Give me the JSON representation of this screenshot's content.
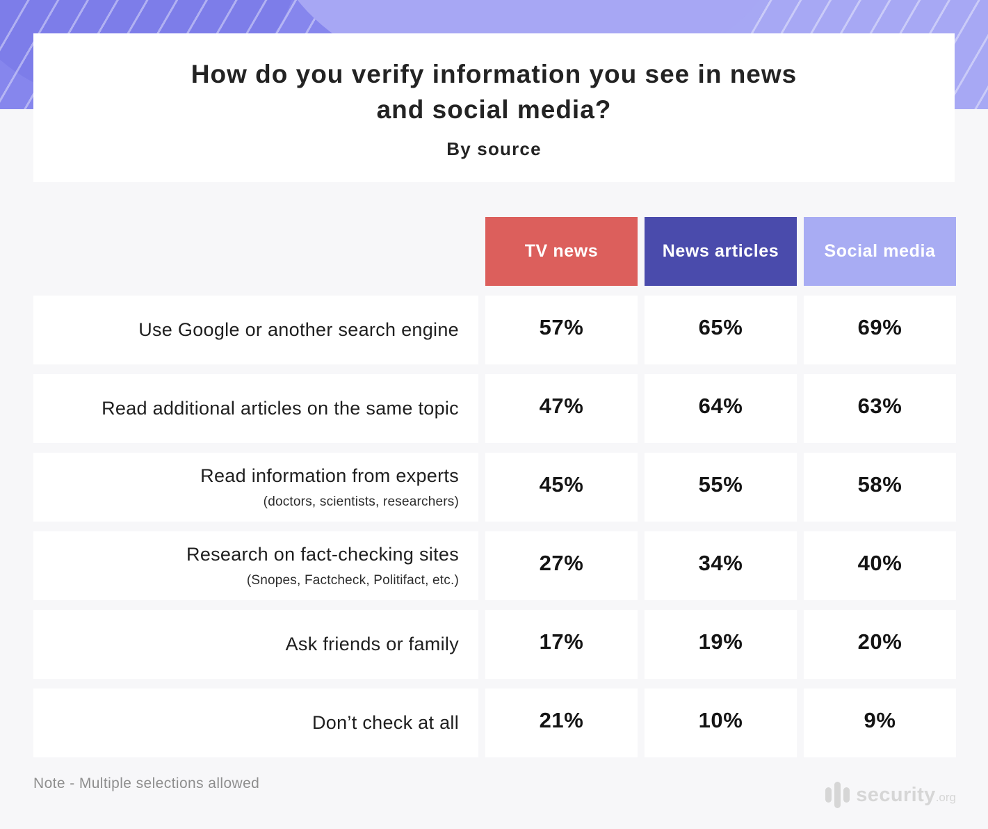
{
  "header": {
    "title_line1": "How do you verify information you see in news",
    "title_line2": "and social media?",
    "subtitle": "By source"
  },
  "chart_data": {
    "type": "table",
    "title": "How do you verify information you see in news and social media?",
    "subtitle": "By source",
    "columns": [
      {
        "label": "TV news",
        "color": "#dc5f5c"
      },
      {
        "label": "News articles",
        "color": "#4a4bac"
      },
      {
        "label": "Social media",
        "color": "#a8acf3"
      }
    ],
    "rows": [
      {
        "label": "Use Google or another search engine",
        "sublabel": "",
        "values": [
          "57%",
          "65%",
          "69%"
        ]
      },
      {
        "label": "Read additional articles on the same topic",
        "sublabel": "",
        "values": [
          "47%",
          "64%",
          "63%"
        ]
      },
      {
        "label": "Read information from experts",
        "sublabel": "(doctors, scientists, researchers)",
        "values": [
          "45%",
          "55%",
          "58%"
        ]
      },
      {
        "label": "Research on fact-checking sites",
        "sublabel": "(Snopes, Factcheck, Politifact, etc.)",
        "values": [
          "27%",
          "34%",
          "40%"
        ]
      },
      {
        "label": "Ask friends or family",
        "sublabel": "",
        "values": [
          "17%",
          "19%",
          "20%"
        ]
      },
      {
        "label": "Don’t check at all",
        "sublabel": "",
        "values": [
          "21%",
          "10%",
          "9%"
        ]
      }
    ],
    "note": "Note - Multiple selections allowed",
    "colors": {
      "band": "#8686ed",
      "page_background": "#f7f7f9",
      "card_background": "#ffffff"
    }
  },
  "footer": {
    "brand_name": "security",
    "brand_tld": ".org"
  }
}
